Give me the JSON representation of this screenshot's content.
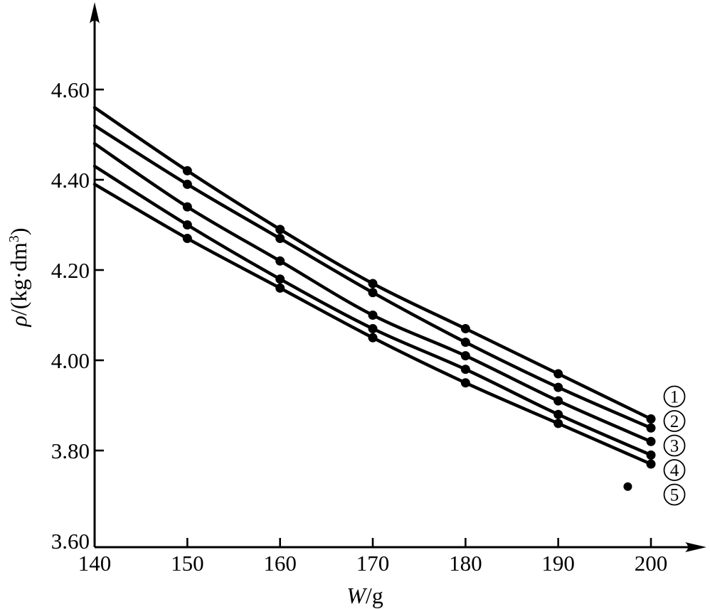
{
  "figure": {
    "background": "#ffffff",
    "ink_color": "#000000"
  },
  "axis_titles": {
    "x_variable": "W",
    "x_units_suffix": "/g",
    "y_variable": "ρ",
    "y_units_prefix": "/(kg·dm",
    "y_units_sup": "3",
    "y_units_suffix": ")"
  },
  "chart_data": {
    "type": "line",
    "title": "",
    "xlabel": "W/g",
    "ylabel": "ρ/(kg·dm³)",
    "x": [
      140,
      150,
      160,
      170,
      180,
      190,
      200
    ],
    "marker_x_start": 150,
    "series": [
      {
        "name": "series-1",
        "legend": "①",
        "legend_digit": "1",
        "values": [
          4.56,
          4.42,
          4.29,
          4.17,
          4.07,
          3.97,
          3.87
        ]
      },
      {
        "name": "series-2",
        "legend": "②",
        "legend_digit": "2",
        "values": [
          4.52,
          4.39,
          4.27,
          4.15,
          4.04,
          3.94,
          3.85
        ]
      },
      {
        "name": "series-3",
        "legend": "③",
        "legend_digit": "3",
        "values": [
          4.48,
          4.34,
          4.22,
          4.1,
          4.01,
          3.91,
          3.82
        ]
      },
      {
        "name": "series-4",
        "legend": "④",
        "legend_digit": "4",
        "values": [
          4.43,
          4.3,
          4.18,
          4.07,
          3.98,
          3.88,
          3.79
        ]
      },
      {
        "name": "series-5",
        "legend": "⑤",
        "legend_digit": "5",
        "values": [
          4.39,
          4.27,
          4.16,
          4.05,
          3.95,
          3.86,
          3.77
        ]
      }
    ],
    "isolated_point": {
      "x": 197.5,
      "y": 3.72
    },
    "x_ticks": [
      140,
      150,
      160,
      170,
      180,
      190,
      200
    ],
    "x_tick_labels": [
      "140",
      "150",
      "160",
      "170",
      "180",
      "190",
      "200"
    ],
    "y_ticks": [
      3.6,
      3.8,
      4.0,
      4.2,
      4.4,
      4.6
    ],
    "y_tick_labels": [
      "3.60",
      "3.80",
      "4.00",
      "4.20",
      "4.40",
      "4.60"
    ],
    "xlim": [
      140,
      206
    ],
    "ylim": [
      3.58,
      4.8
    ],
    "grid": false,
    "legend_position": "right-of-curve-ends",
    "marker": "filled-circle",
    "line_color": "#000000"
  }
}
